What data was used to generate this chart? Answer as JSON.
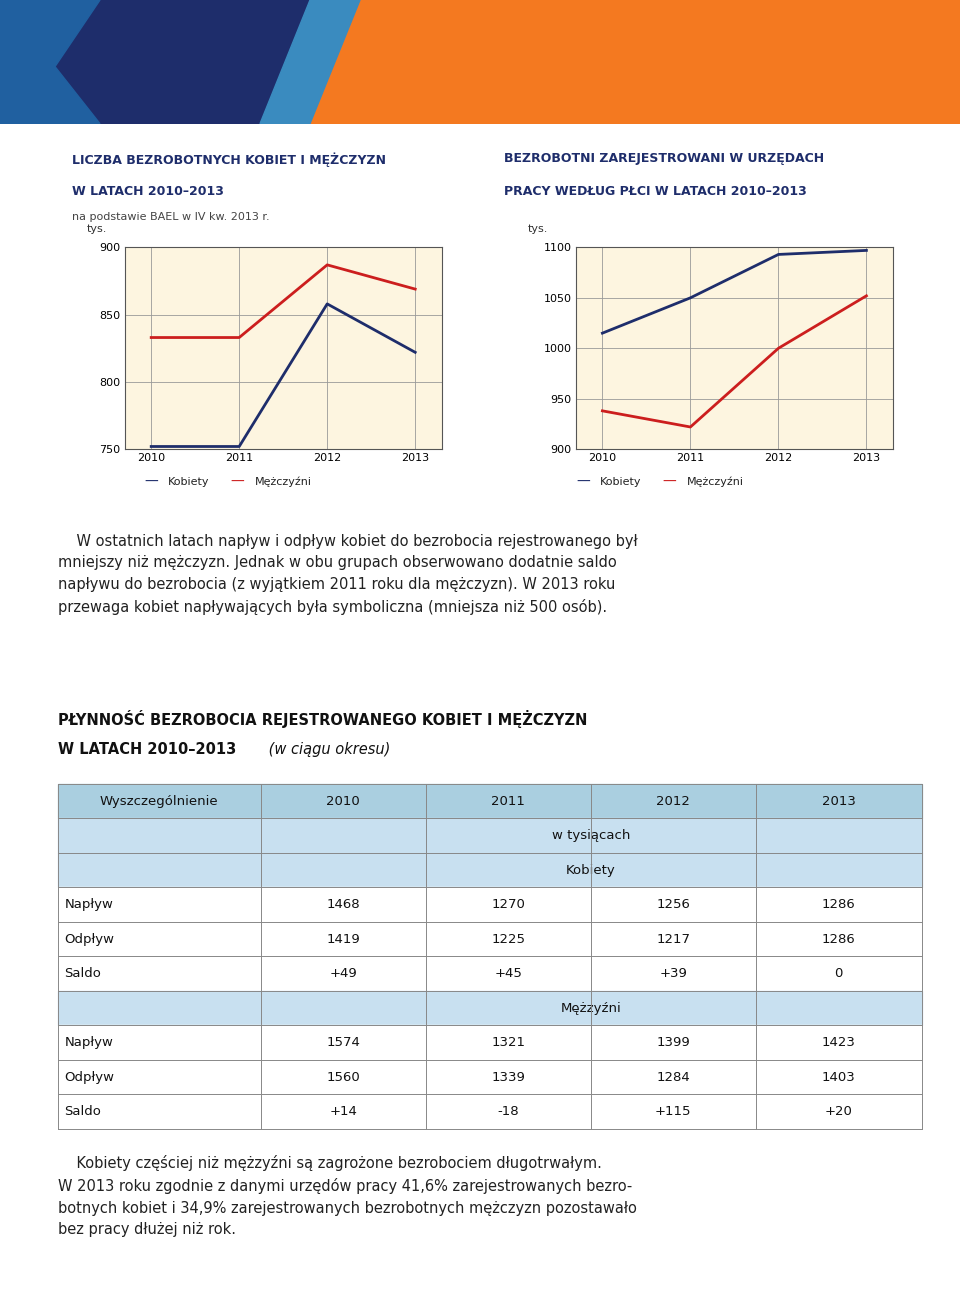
{
  "page_bg": "#ffffff",
  "header_orange": "#F47920",
  "header_blue_dark": "#1e2d6b",
  "header_blue_mid": "#2060a0",
  "header_blue_light": "#3a8bbf",
  "chart_bg": "#c8e0f0",
  "plot_bg": "#fdf5e0",
  "chart1_title_line1": "LICZBA BEZROBOTNYCH KOBIET I MĘŻCZYZN",
  "chart1_title_line2": "W LATACH 2010–2013",
  "chart1_subtitle": "na podstawie BAEL w IV kw. 2013 r.",
  "chart1_ylabel": "tys.",
  "chart1_years": [
    2010,
    2011,
    2012,
    2013
  ],
  "chart1_kobiety": [
    752,
    752,
    858,
    822
  ],
  "chart1_mezczyzni": [
    833,
    833,
    887,
    869
  ],
  "chart1_ylim": [
    750,
    900
  ],
  "chart1_yticks": [
    750,
    800,
    850,
    900
  ],
  "chart2_title_line1": "BEZROBOTNI ZAREJESTROWANI W URZĘDACH",
  "chart2_title_line2": "PRACY WEDŁUG PŁCI W LATACH 2010–2013",
  "chart2_ylabel": "tys.",
  "chart2_years": [
    2010,
    2011,
    2012,
    2013
  ],
  "chart2_kobiety": [
    1015,
    1050,
    1093,
    1097
  ],
  "chart2_mezczyzni": [
    938,
    922,
    1000,
    1052
  ],
  "chart2_ylim": [
    900,
    1100
  ],
  "chart2_yticks": [
    900,
    950,
    1000,
    1050,
    1100
  ],
  "color_kobiety": "#1e2d6b",
  "color_mezczyzni": "#cc1e1e",
  "legend_kobiety": "Kobiety",
  "legend_mezczyzni": "Mężczyźni",
  "paragraph_text": "    W ostatnich latach napływ i odpływ kobiet do bezrobocia rejestrowanego był\nmniejszy niż mężczyzn. Jednak w obu grupach obserwowano dodatnie saldo\nnapływu do bezrobocia (z wyjątkiem 2011 roku dla mężczyzn). W 2013 roku\nprzewaga kobiet napływających była symboliczna (mniejsza niż 500 osób).",
  "table_title_line1": "PŁYNNOŚĆ BEZROBOCIA REJESTROWANEGO KOBIET I MĘŻCZYZN",
  "table_title_line2_bold": "W LATACH 2010–2013",
  "table_title_line2_italic": " (w ciągu okresu)",
  "table_header_years": [
    "2010",
    "2011",
    "2012",
    "2013"
  ],
  "table_col0_header": "Wyszczególnienie",
  "table_sub_header1": "w tysiącach",
  "table_sub_header2_kobiety": "Kobiety",
  "table_sub_header2_mezczyzni": "Mężzyźni",
  "table_rows_kobiety": [
    [
      "Napływ",
      "1468",
      "1270",
      "1256",
      "1286"
    ],
    [
      "Odpływ",
      "1419",
      "1225",
      "1217",
      "1286"
    ],
    [
      "Saldo",
      "+49",
      "+45",
      "+39",
      "0"
    ]
  ],
  "table_rows_mezczyzni": [
    [
      "Napływ",
      "1574",
      "1321",
      "1399",
      "1423"
    ],
    [
      "Odpływ",
      "1560",
      "1339",
      "1284",
      "1403"
    ],
    [
      "Saldo",
      "+14",
      "-18",
      "+115",
      "+20"
    ]
  ],
  "footer_text": "    Kobiety częściej niż mężzyźni są zagrożone bezrobociem długotrwałym.\nW 2013 roku zgodnie z danymi urzędów pracy 41,6% zarejestrowanych bezro-\nbotnych kobiet i 34,9% zarejestrowanych bezrobotnych mężczyzn pozostawało\nbez pracy dłużej niż rok."
}
